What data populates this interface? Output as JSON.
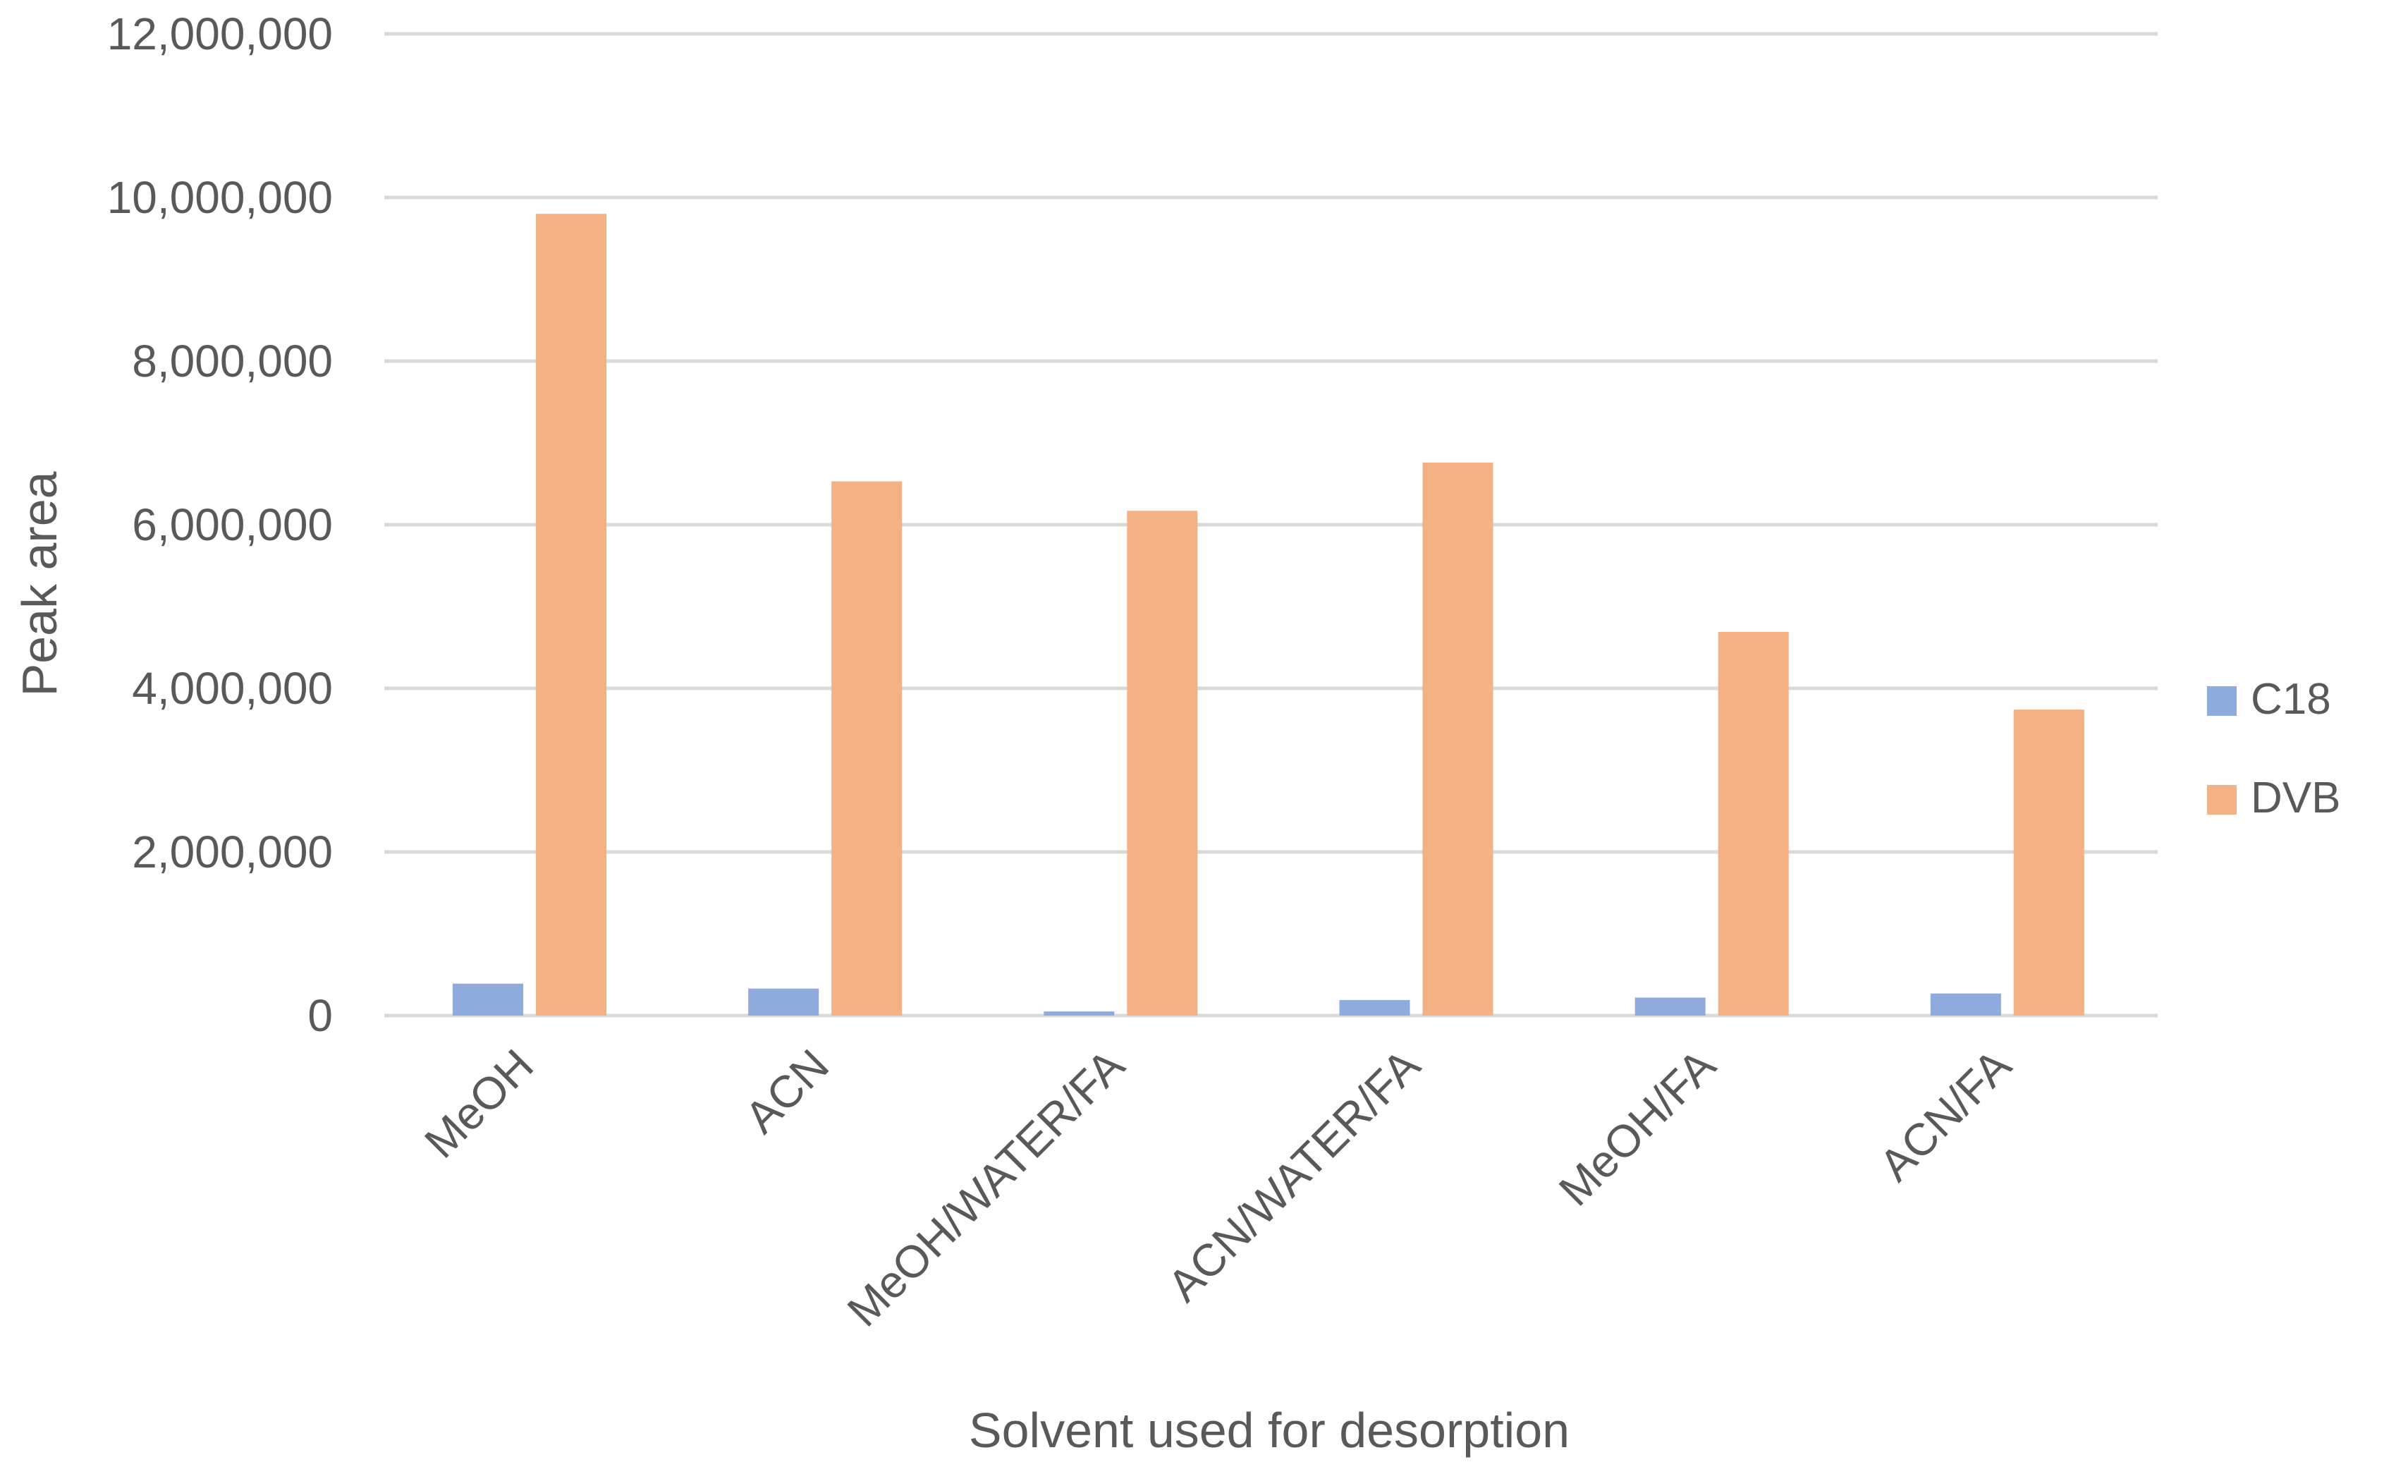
{
  "chart_data": {
    "type": "bar",
    "title": "",
    "xlabel": "Solvent used for desorption",
    "ylabel": "Peak area",
    "ylim": [
      0,
      12000000
    ],
    "yticks": [
      0,
      2000000,
      4000000,
      6000000,
      8000000,
      10000000,
      12000000
    ],
    "ytick_labels": [
      "0",
      "2,000,000",
      "4,000,000",
      "6,000,000",
      "8,000,000",
      "10,000,000",
      "12,000,000"
    ],
    "categories": [
      "MeOH",
      "ACN",
      "MeOH/WATER/FA",
      "ACN/WATER/FA",
      "MeOH/FA",
      "ACN/FA"
    ],
    "series": [
      {
        "name": "C18",
        "color": "#8faadc",
        "values": [
          390000,
          330000,
          50000,
          190000,
          220000,
          270000
        ]
      },
      {
        "name": "DVB",
        "color": "#f4b183",
        "values": [
          9800000,
          6530000,
          6170000,
          6760000,
          4690000,
          3740000
        ]
      }
    ],
    "grid": true,
    "legend_position": "right"
  }
}
